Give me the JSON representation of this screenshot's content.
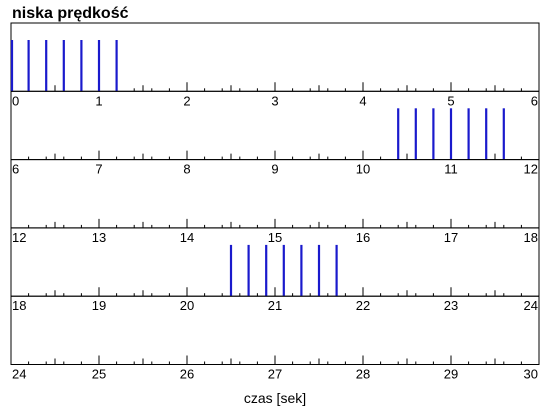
{
  "chart_data": {
    "type": "spike-raster",
    "title": "niska prędkość",
    "xlabel": "czas [sek]",
    "ylabel": "",
    "color": "#1a1acc",
    "panels": [
      {
        "xlim": [
          0,
          6
        ],
        "tick_labels": [
          "0",
          "1",
          "2",
          "3",
          "4",
          "5",
          "6"
        ],
        "spikes": [
          0.0,
          0.2,
          0.4,
          0.6,
          0.8,
          1.0,
          1.2
        ]
      },
      {
        "xlim": [
          6,
          12
        ],
        "tick_labels": [
          "6",
          "7",
          "8",
          "9",
          "10",
          "11",
          "12"
        ],
        "spikes": [
          10.4,
          10.6,
          10.8,
          11.0,
          11.2,
          11.4,
          11.6
        ]
      },
      {
        "xlim": [
          12,
          18
        ],
        "tick_labels": [
          "12",
          "13",
          "14",
          "15",
          "16",
          "17",
          "18"
        ],
        "spikes": []
      },
      {
        "xlim": [
          18,
          24
        ],
        "tick_labels": [
          "18",
          "19",
          "20",
          "21",
          "22",
          "23",
          "24"
        ],
        "spikes": [
          20.5,
          20.7,
          20.9,
          21.1,
          21.3,
          21.5,
          21.7
        ]
      },
      {
        "xlim": [
          24,
          30
        ],
        "tick_labels": [
          "24",
          "25",
          "26",
          "27",
          "28",
          "29",
          "30"
        ],
        "spikes": []
      }
    ],
    "grid": false,
    "legend": "none"
  }
}
